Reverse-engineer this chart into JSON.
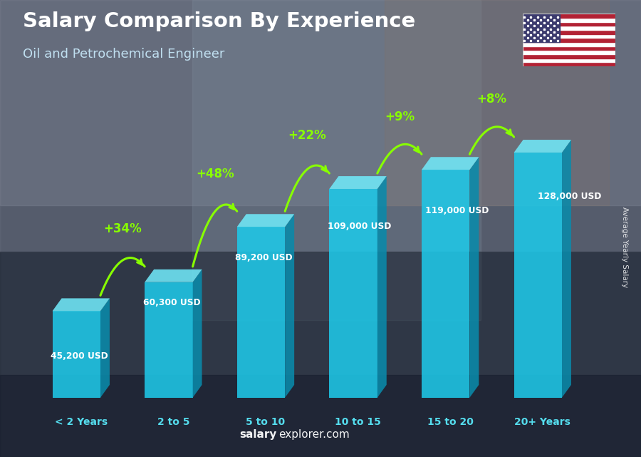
{
  "title": "Salary Comparison By Experience",
  "subtitle": "Oil and Petrochemical Engineer",
  "ylabel": "Average Yearly Salary",
  "categories": [
    "< 2 Years",
    "2 to 5",
    "5 to 10",
    "10 to 15",
    "15 to 20",
    "20+ Years"
  ],
  "values": [
    45200,
    60300,
    89200,
    109000,
    119000,
    128000
  ],
  "value_labels": [
    "45,200 USD",
    "60,300 USD",
    "89,200 USD",
    "109,000 USD",
    "119,000 USD",
    "128,000 USD"
  ],
  "pct_changes": [
    "+34%",
    "+48%",
    "+22%",
    "+9%",
    "+8%"
  ],
  "bar_face": "#1ec8e8",
  "bar_side": "#0a8aaa",
  "bar_top": "#70e8f8",
  "pct_color": "#88ff00",
  "xlabel_color": "#55ddee",
  "title_color": "#ffffff",
  "subtitle_color": "#c0dff0",
  "label_color": "#ffffff",
  "watermark_bold": "salary",
  "watermark_rest": "explorer.com",
  "ylabel_text": "Average Yearly Salary",
  "figsize": [
    9.0,
    6.41
  ],
  "dpi": 100,
  "max_val": 148000
}
